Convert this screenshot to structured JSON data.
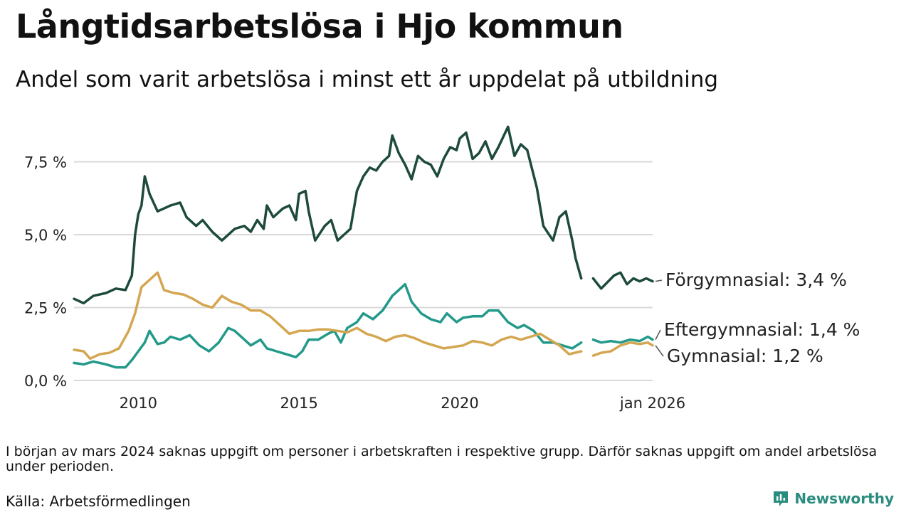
{
  "header": {
    "title": "Långtidsarbetslösa i Hjo kommun",
    "subtitle": "Andel som varit arbetslösa i minst ett år uppdelat på utbildning"
  },
  "footer": {
    "note": "I början av mars 2024 saknas uppgift om personer i arbetskraften i respektive grupp. Därför saknas uppgift om andel arbetslösa under perioden.",
    "source": "Källa: Arbetsförmedlingen",
    "brand": "Newsworthy"
  },
  "colors": {
    "forgymnasial": "#1e4a3e",
    "eftergymnasial": "#23998a",
    "gymnasial": "#d4a651",
    "grid": "#d9d9d9"
  },
  "chart_data": {
    "type": "line",
    "title": "Långtidsarbetslösa i Hjo kommun",
    "xlabel": "",
    "ylabel": "",
    "xlim": [
      2008.0,
      2026.0
    ],
    "ylim": [
      0,
      9
    ],
    "y_ticks": [
      {
        "value": 0,
        "label": "0,0 %"
      },
      {
        "value": 2.5,
        "label": "2,5 %"
      },
      {
        "value": 5.0,
        "label": "5,0 %"
      },
      {
        "value": 7.5,
        "label": "7,5 %"
      }
    ],
    "x_ticks": [
      {
        "value": 2010,
        "label": "2010"
      },
      {
        "value": 2015,
        "label": "2015"
      },
      {
        "value": 2020,
        "label": "2020"
      },
      {
        "value": 2026,
        "label": "jan 2026"
      }
    ],
    "gap": [
      2023.8,
      2024.15
    ],
    "series": [
      {
        "name": "Förgymnasial",
        "label": "Förgymnasial: 3,4 %",
        "color": "#1e4a3e",
        "points": [
          [
            2008.0,
            2.8
          ],
          [
            2008.3,
            2.65
          ],
          [
            2008.6,
            2.9
          ],
          [
            2009.0,
            3.0
          ],
          [
            2009.3,
            3.15
          ],
          [
            2009.6,
            3.1
          ],
          [
            2009.8,
            3.6
          ],
          [
            2009.9,
            5.0
          ],
          [
            2010.0,
            5.7
          ],
          [
            2010.1,
            6.0
          ],
          [
            2010.2,
            7.0
          ],
          [
            2010.35,
            6.4
          ],
          [
            2010.6,
            5.8
          ],
          [
            2011.0,
            6.0
          ],
          [
            2011.3,
            6.1
          ],
          [
            2011.5,
            5.6
          ],
          [
            2011.8,
            5.3
          ],
          [
            2012.0,
            5.5
          ],
          [
            2012.3,
            5.1
          ],
          [
            2012.6,
            4.8
          ],
          [
            2013.0,
            5.2
          ],
          [
            2013.3,
            5.3
          ],
          [
            2013.5,
            5.1
          ],
          [
            2013.7,
            5.5
          ],
          [
            2013.9,
            5.2
          ],
          [
            2014.0,
            6.0
          ],
          [
            2014.2,
            5.6
          ],
          [
            2014.5,
            5.9
          ],
          [
            2014.7,
            6.0
          ],
          [
            2014.9,
            5.5
          ],
          [
            2015.0,
            6.4
          ],
          [
            2015.2,
            6.5
          ],
          [
            2015.3,
            5.8
          ],
          [
            2015.5,
            4.8
          ],
          [
            2015.8,
            5.3
          ],
          [
            2016.0,
            5.5
          ],
          [
            2016.2,
            4.8
          ],
          [
            2016.4,
            5.0
          ],
          [
            2016.6,
            5.2
          ],
          [
            2016.8,
            6.5
          ],
          [
            2017.0,
            7.0
          ],
          [
            2017.2,
            7.3
          ],
          [
            2017.4,
            7.2
          ],
          [
            2017.6,
            7.5
          ],
          [
            2017.8,
            7.7
          ],
          [
            2017.9,
            8.4
          ],
          [
            2018.1,
            7.8
          ],
          [
            2018.3,
            7.4
          ],
          [
            2018.5,
            6.9
          ],
          [
            2018.7,
            7.7
          ],
          [
            2018.9,
            7.5
          ],
          [
            2019.1,
            7.4
          ],
          [
            2019.3,
            7.0
          ],
          [
            2019.5,
            7.6
          ],
          [
            2019.7,
            8.0
          ],
          [
            2019.9,
            7.9
          ],
          [
            2020.0,
            8.3
          ],
          [
            2020.2,
            8.5
          ],
          [
            2020.4,
            7.6
          ],
          [
            2020.6,
            7.8
          ],
          [
            2020.8,
            8.2
          ],
          [
            2021.0,
            7.6
          ],
          [
            2021.2,
            8.0
          ],
          [
            2021.5,
            8.7
          ],
          [
            2021.7,
            7.7
          ],
          [
            2021.9,
            8.1
          ],
          [
            2022.1,
            7.9
          ],
          [
            2022.4,
            6.6
          ],
          [
            2022.6,
            5.3
          ],
          [
            2022.9,
            4.8
          ],
          [
            2023.1,
            5.6
          ],
          [
            2023.3,
            5.8
          ],
          [
            2023.5,
            4.8
          ],
          [
            2023.6,
            4.2
          ],
          [
            2023.78,
            3.5
          ],
          [
            2024.15,
            3.5
          ],
          [
            2024.4,
            3.15
          ],
          [
            2024.8,
            3.6
          ],
          [
            2025.0,
            3.7
          ],
          [
            2025.2,
            3.3
          ],
          [
            2025.4,
            3.5
          ],
          [
            2025.6,
            3.4
          ],
          [
            2025.8,
            3.5
          ],
          [
            2026.0,
            3.4
          ]
        ]
      },
      {
        "name": "Eftergymnasial",
        "label": "Eftergymnasial: 1,4 %",
        "color": "#23998a",
        "points": [
          [
            2008.0,
            0.6
          ],
          [
            2008.3,
            0.55
          ],
          [
            2008.6,
            0.65
          ],
          [
            2009.0,
            0.55
          ],
          [
            2009.3,
            0.45
          ],
          [
            2009.6,
            0.45
          ],
          [
            2009.8,
            0.7
          ],
          [
            2010.0,
            1.0
          ],
          [
            2010.2,
            1.3
          ],
          [
            2010.35,
            1.7
          ],
          [
            2010.6,
            1.25
          ],
          [
            2010.8,
            1.3
          ],
          [
            2011.0,
            1.5
          ],
          [
            2011.3,
            1.4
          ],
          [
            2011.6,
            1.55
          ],
          [
            2011.9,
            1.2
          ],
          [
            2012.2,
            1.0
          ],
          [
            2012.5,
            1.3
          ],
          [
            2012.8,
            1.8
          ],
          [
            2013.0,
            1.7
          ],
          [
            2013.3,
            1.4
          ],
          [
            2013.5,
            1.2
          ],
          [
            2013.8,
            1.4
          ],
          [
            2014.0,
            1.1
          ],
          [
            2014.3,
            1.0
          ],
          [
            2014.6,
            0.9
          ],
          [
            2014.9,
            0.8
          ],
          [
            2015.1,
            1.0
          ],
          [
            2015.3,
            1.4
          ],
          [
            2015.6,
            1.4
          ],
          [
            2015.9,
            1.6
          ],
          [
            2016.1,
            1.7
          ],
          [
            2016.3,
            1.3
          ],
          [
            2016.5,
            1.8
          ],
          [
            2016.8,
            2.0
          ],
          [
            2017.0,
            2.3
          ],
          [
            2017.3,
            2.1
          ],
          [
            2017.6,
            2.4
          ],
          [
            2017.9,
            2.9
          ],
          [
            2018.1,
            3.1
          ],
          [
            2018.3,
            3.3
          ],
          [
            2018.5,
            2.7
          ],
          [
            2018.8,
            2.3
          ],
          [
            2019.1,
            2.1
          ],
          [
            2019.4,
            2.0
          ],
          [
            2019.6,
            2.3
          ],
          [
            2019.9,
            2.0
          ],
          [
            2020.1,
            2.15
          ],
          [
            2020.4,
            2.2
          ],
          [
            2020.7,
            2.2
          ],
          [
            2020.9,
            2.4
          ],
          [
            2021.2,
            2.4
          ],
          [
            2021.5,
            2.0
          ],
          [
            2021.8,
            1.8
          ],
          [
            2022.0,
            1.9
          ],
          [
            2022.3,
            1.7
          ],
          [
            2022.6,
            1.3
          ],
          [
            2022.9,
            1.3
          ],
          [
            2023.2,
            1.2
          ],
          [
            2023.5,
            1.1
          ],
          [
            2023.78,
            1.3
          ],
          [
            2024.15,
            1.4
          ],
          [
            2024.4,
            1.3
          ],
          [
            2024.7,
            1.35
          ],
          [
            2025.0,
            1.3
          ],
          [
            2025.3,
            1.4
          ],
          [
            2025.6,
            1.35
          ],
          [
            2025.85,
            1.5
          ],
          [
            2026.0,
            1.4
          ]
        ]
      },
      {
        "name": "Gymnasial",
        "label": "Gymnasial: 1,2 %",
        "color": "#d4a651",
        "points": [
          [
            2008.0,
            1.05
          ],
          [
            2008.3,
            1.0
          ],
          [
            2008.5,
            0.75
          ],
          [
            2008.8,
            0.9
          ],
          [
            2009.1,
            0.95
          ],
          [
            2009.4,
            1.1
          ],
          [
            2009.7,
            1.7
          ],
          [
            2009.9,
            2.3
          ],
          [
            2010.1,
            3.2
          ],
          [
            2010.4,
            3.5
          ],
          [
            2010.6,
            3.7
          ],
          [
            2010.8,
            3.1
          ],
          [
            2011.1,
            3.0
          ],
          [
            2011.4,
            2.95
          ],
          [
            2011.7,
            2.8
          ],
          [
            2012.0,
            2.6
          ],
          [
            2012.3,
            2.5
          ],
          [
            2012.6,
            2.9
          ],
          [
            2012.9,
            2.7
          ],
          [
            2013.2,
            2.6
          ],
          [
            2013.5,
            2.4
          ],
          [
            2013.8,
            2.4
          ],
          [
            2014.1,
            2.2
          ],
          [
            2014.4,
            1.9
          ],
          [
            2014.7,
            1.6
          ],
          [
            2015.0,
            1.7
          ],
          [
            2015.3,
            1.7
          ],
          [
            2015.6,
            1.75
          ],
          [
            2015.9,
            1.75
          ],
          [
            2016.2,
            1.7
          ],
          [
            2016.5,
            1.65
          ],
          [
            2016.8,
            1.8
          ],
          [
            2017.1,
            1.6
          ],
          [
            2017.4,
            1.5
          ],
          [
            2017.7,
            1.35
          ],
          [
            2018.0,
            1.5
          ],
          [
            2018.3,
            1.55
          ],
          [
            2018.6,
            1.45
          ],
          [
            2018.9,
            1.3
          ],
          [
            2019.2,
            1.2
          ],
          [
            2019.5,
            1.1
          ],
          [
            2019.8,
            1.15
          ],
          [
            2020.1,
            1.2
          ],
          [
            2020.4,
            1.35
          ],
          [
            2020.7,
            1.3
          ],
          [
            2021.0,
            1.2
          ],
          [
            2021.3,
            1.4
          ],
          [
            2021.6,
            1.5
          ],
          [
            2021.9,
            1.4
          ],
          [
            2022.2,
            1.5
          ],
          [
            2022.5,
            1.6
          ],
          [
            2022.8,
            1.4
          ],
          [
            2023.1,
            1.2
          ],
          [
            2023.4,
            0.9
          ],
          [
            2023.78,
            1.0
          ],
          [
            2024.15,
            0.85
          ],
          [
            2024.4,
            0.95
          ],
          [
            2024.7,
            1.0
          ],
          [
            2025.0,
            1.2
          ],
          [
            2025.3,
            1.3
          ],
          [
            2025.6,
            1.25
          ],
          [
            2025.85,
            1.3
          ],
          [
            2026.0,
            1.2
          ]
        ]
      }
    ]
  }
}
